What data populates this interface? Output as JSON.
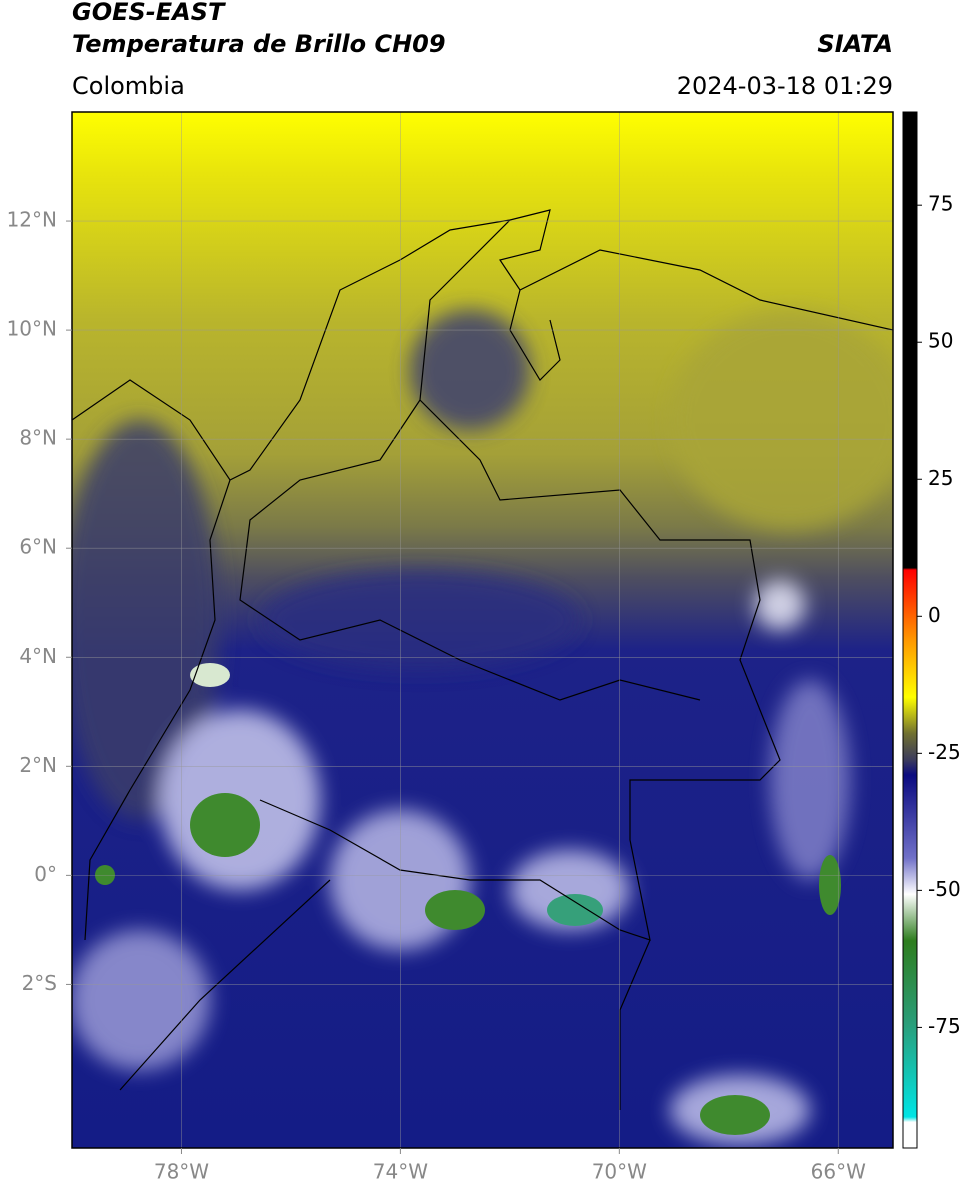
{
  "header": {
    "title": "GOES-EAST",
    "subtitle": "Temperatura de Brillo CH09",
    "region": "Colombia",
    "source": "SIATA",
    "datetime": "2024-03-18 01:29"
  },
  "map": {
    "lon_lim": [
      -80,
      -65
    ],
    "lat_lim": [
      -5,
      14
    ],
    "lon_ticks": [
      {
        "value": -78,
        "label": "78°W"
      },
      {
        "value": -74,
        "label": "74°W"
      },
      {
        "value": -70,
        "label": "70°W"
      },
      {
        "value": -66,
        "label": "66°W"
      }
    ],
    "lat_ticks": [
      {
        "value": 12,
        "label": "12°N"
      },
      {
        "value": 10,
        "label": "10°N"
      },
      {
        "value": 8,
        "label": "8°N"
      },
      {
        "value": 6,
        "label": "6°N"
      },
      {
        "value": 4,
        "label": "4°N"
      },
      {
        "value": 2,
        "label": "2°N"
      },
      {
        "value": 0,
        "label": "0°"
      },
      {
        "value": -2,
        "label": "2°S"
      }
    ],
    "grid": true
  },
  "colorbar": {
    "lim": [
      -97,
      92
    ],
    "ticks": [
      75,
      50,
      25,
      0,
      -25,
      -50,
      -75
    ]
  }
}
